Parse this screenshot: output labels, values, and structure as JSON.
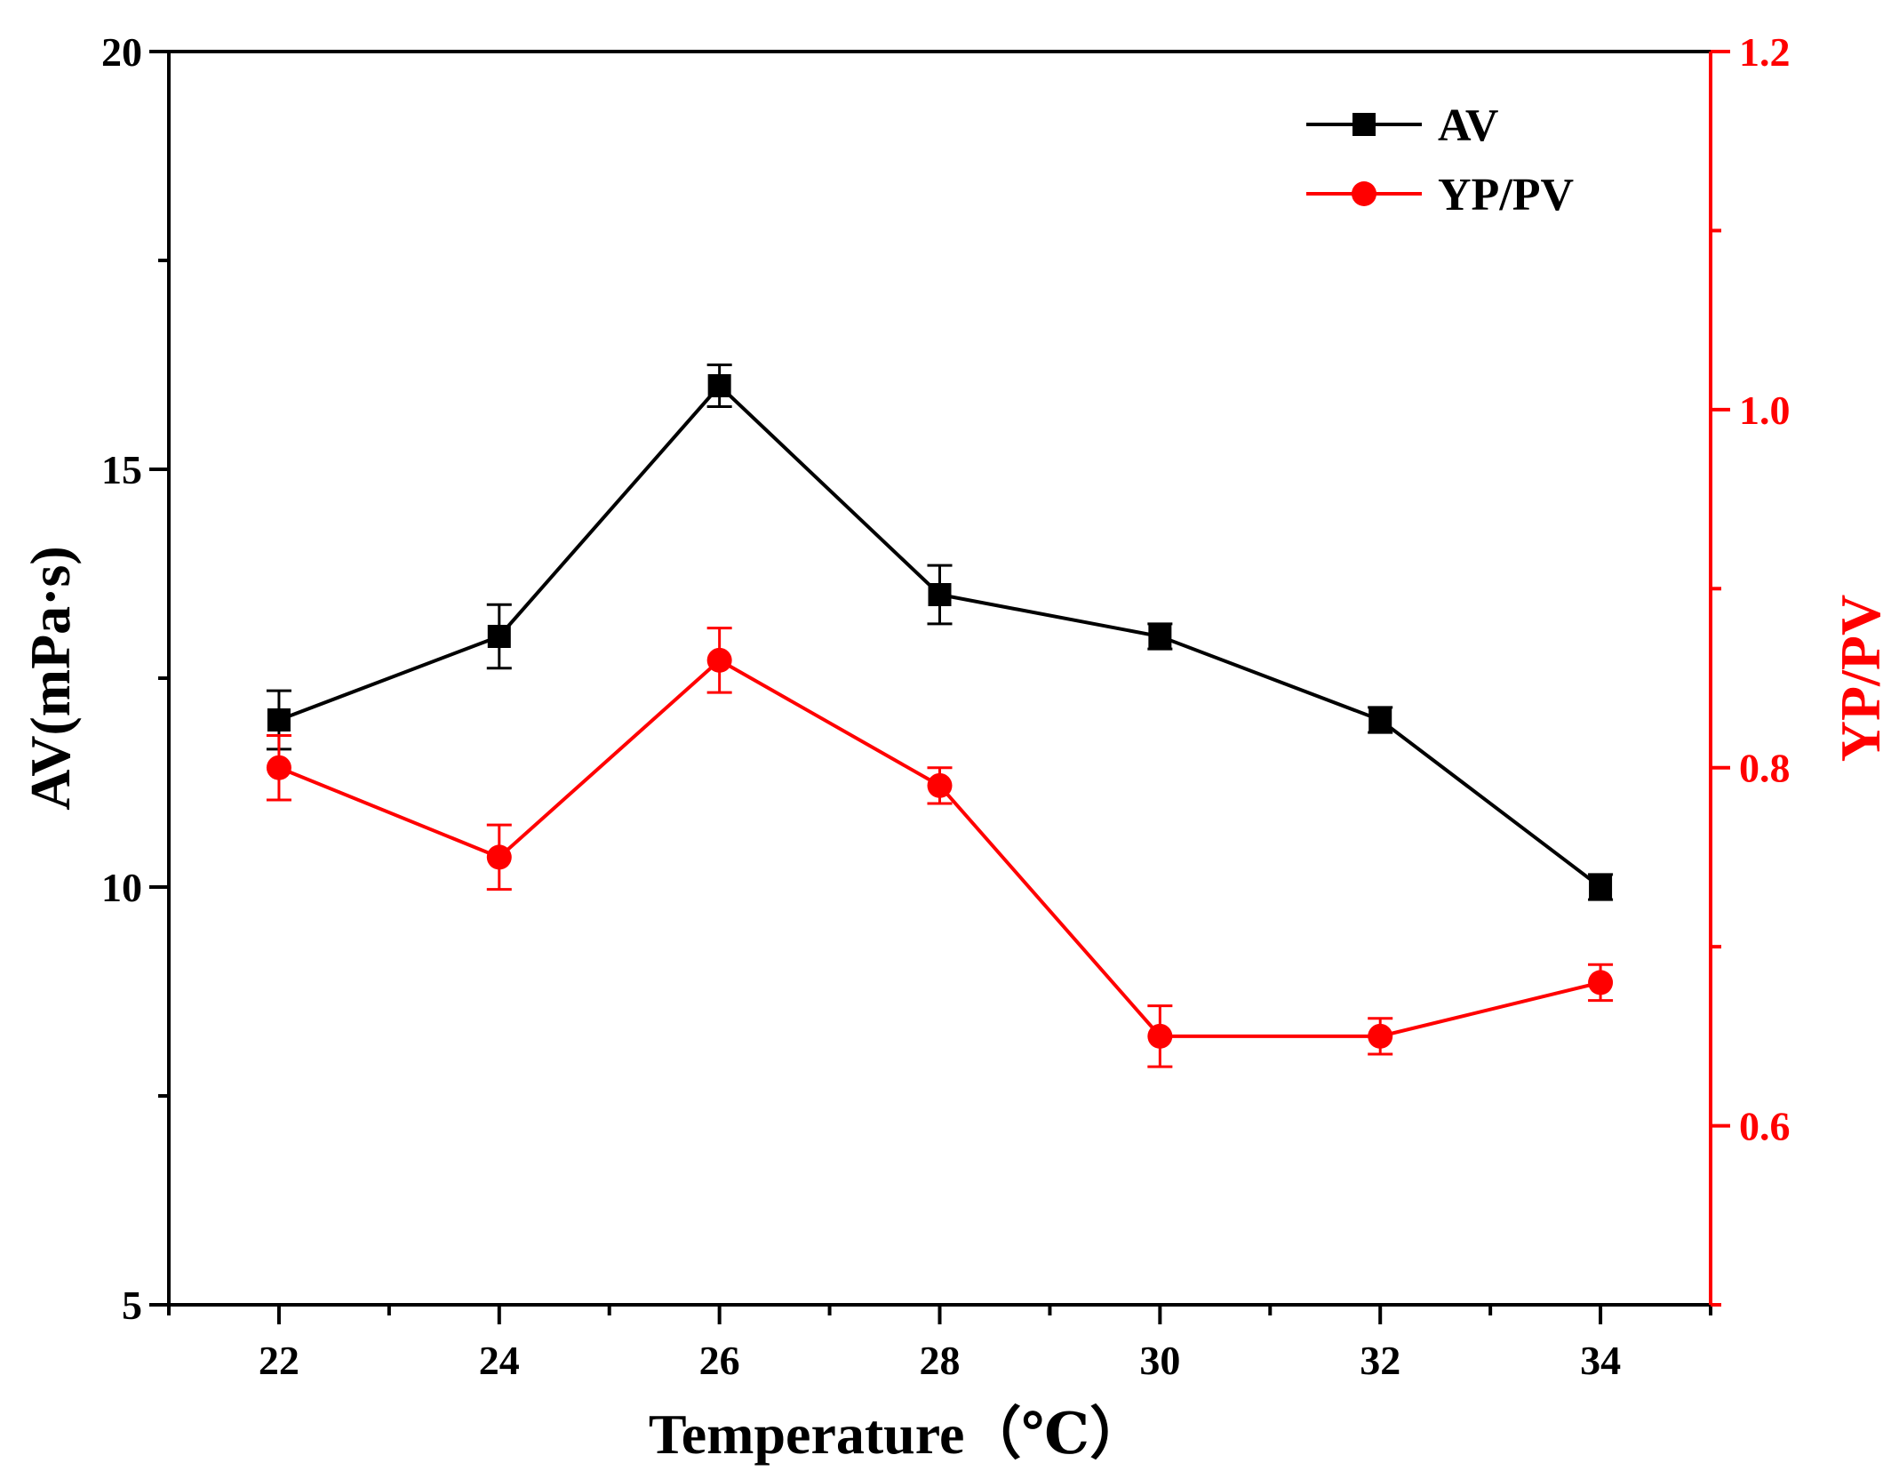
{
  "chart_data": {
    "type": "line",
    "x": [
      22,
      24,
      26,
      28,
      30,
      32,
      34
    ],
    "xlabel": "Temperature（℃）",
    "xlim": [
      21,
      35
    ],
    "x_ticks": [
      "22",
      "24",
      "26",
      "28",
      "30",
      "32",
      "34"
    ],
    "ylabel_left": "AV(mPa·s)",
    "ylim_left": [
      5,
      20
    ],
    "y_left_ticks": [
      "5",
      "10",
      "15",
      "20"
    ],
    "ylabel_right": "YP/PV",
    "ylim_right": [
      0.5,
      1.2
    ],
    "y_right_ticks": [
      "0.6",
      "0.8",
      "1.0",
      "1.2"
    ],
    "grid": false,
    "legend_position": "top-right",
    "series": [
      {
        "name": "AV",
        "axis": "left",
        "color": "#000000",
        "marker": "square",
        "values": [
          12.0,
          13.0,
          16.0,
          13.5,
          13.0,
          12.0,
          10.0
        ],
        "errors": [
          0.35,
          0.38,
          0.25,
          0.35,
          0.15,
          0.15,
          0.15
        ]
      },
      {
        "name": "YP/PV",
        "axis": "right",
        "color": "#ff0000",
        "marker": "circle",
        "values": [
          0.8,
          0.75,
          0.86,
          0.79,
          0.65,
          0.65,
          0.68
        ],
        "errors": [
          0.018,
          0.018,
          0.018,
          0.01,
          0.017,
          0.01,
          0.01
        ]
      }
    ]
  }
}
